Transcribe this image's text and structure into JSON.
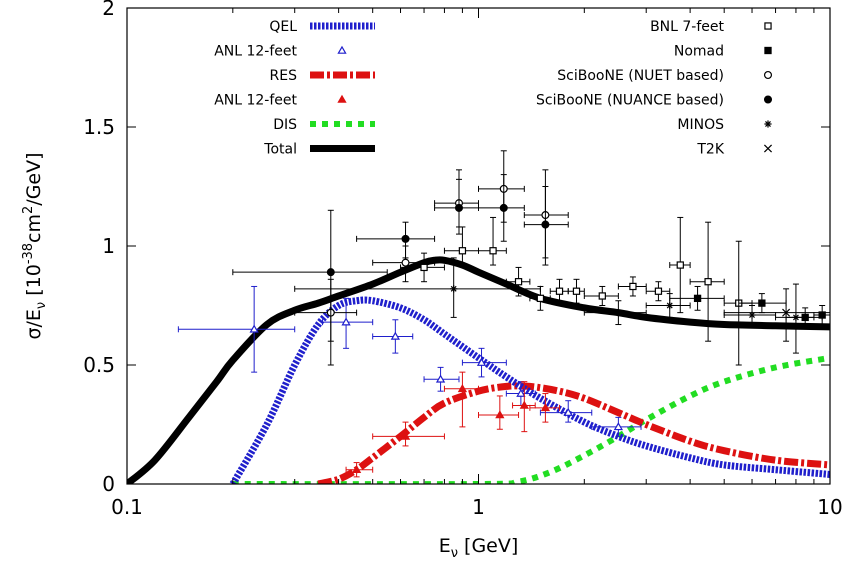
{
  "chart_data": {
    "type": "scatter",
    "title": "",
    "xlabel": "E",
    "xlabel_sub": "ν",
    "xlabel_unit": " [GeV]",
    "ylabel_pre": "σ/E",
    "ylabel_sub": "ν",
    "ylabel_mid": " [10",
    "ylabel_exp1": "-38",
    "ylabel_mid2": "cm",
    "ylabel_exp2": "2",
    "ylabel_post": "/GeV]",
    "x_scale": "log",
    "xlim": [
      0.1,
      10
    ],
    "ylim": [
      0,
      2
    ],
    "x_ticks": [
      0.1,
      1,
      10
    ],
    "x_tick_labels": [
      "0.1",
      "1",
      "10"
    ],
    "y_ticks": [
      0,
      0.5,
      1,
      1.5,
      2
    ],
    "y_tick_labels": [
      "0",
      "0.5",
      "1",
      "1.5",
      "2"
    ],
    "grid": false,
    "legend_left": [
      "QEL",
      "ANL 12-feet",
      "RES",
      "ANL 12-feet",
      "DIS",
      "Total"
    ],
    "legend_right": [
      "BNL 7-feet",
      "Nomad",
      "SciBooNE (NUET based)",
      "SciBooNE (NUANCE based)",
      "MINOS",
      "T2K"
    ],
    "curves": [
      {
        "name": "QEL",
        "color": "#1f1fcc",
        "style": "dotted",
        "x": [
          0.2,
          0.25,
          0.3,
          0.35,
          0.4,
          0.45,
          0.5,
          0.6,
          0.7,
          0.8,
          1.0,
          1.2,
          1.5,
          2.0,
          2.5,
          3.0,
          4.0,
          5.0,
          7.0,
          10.0
        ],
        "y": [
          0.0,
          0.25,
          0.5,
          0.67,
          0.75,
          0.77,
          0.77,
          0.74,
          0.69,
          0.63,
          0.53,
          0.45,
          0.36,
          0.26,
          0.2,
          0.16,
          0.11,
          0.08,
          0.06,
          0.04
        ]
      },
      {
        "name": "RES",
        "color": "#dd1111",
        "style": "dashdot",
        "x": [
          0.35,
          0.4,
          0.45,
          0.5,
          0.6,
          0.7,
          0.8,
          1.0,
          1.2,
          1.4,
          1.7,
          2.0,
          2.5,
          3.0,
          4.0,
          5.0,
          7.0,
          10.0
        ],
        "y": [
          0.0,
          0.02,
          0.06,
          0.11,
          0.2,
          0.28,
          0.34,
          0.39,
          0.41,
          0.41,
          0.39,
          0.36,
          0.3,
          0.25,
          0.18,
          0.14,
          0.1,
          0.08
        ]
      },
      {
        "name": "DIS",
        "color": "#22dd22",
        "style": "dotted",
        "x": [
          0.2,
          1.0,
          1.3,
          1.6,
          2.0,
          2.5,
          3.0,
          4.0,
          5.0,
          7.0,
          10.0
        ],
        "y": [
          0.0,
          0.0,
          0.01,
          0.05,
          0.12,
          0.2,
          0.27,
          0.37,
          0.43,
          0.49,
          0.53
        ]
      },
      {
        "name": "Total",
        "color": "#000000",
        "style": "solid",
        "x": [
          0.1,
          0.12,
          0.15,
          0.18,
          0.2,
          0.25,
          0.3,
          0.35,
          0.4,
          0.5,
          0.6,
          0.7,
          0.75,
          0.8,
          0.9,
          1.0,
          1.2,
          1.5,
          2.0,
          2.5,
          3.0,
          4.0,
          5.0,
          7.0,
          10.0
        ],
        "y": [
          0.0,
          0.1,
          0.28,
          0.43,
          0.52,
          0.67,
          0.73,
          0.76,
          0.79,
          0.84,
          0.89,
          0.93,
          0.94,
          0.94,
          0.92,
          0.89,
          0.84,
          0.78,
          0.74,
          0.72,
          0.7,
          0.68,
          0.67,
          0.665,
          0.66
        ]
      }
    ],
    "points": [
      {
        "name": "ANL 12-feet (QEL)",
        "marker": "triangle-open",
        "color": "#1f1fcc",
        "data": [
          {
            "x": 0.23,
            "y": 0.65,
            "xl": 0.14,
            "xh": 0.3,
            "yl": 0.47,
            "yh": 0.83
          },
          {
            "x": 0.42,
            "y": 0.68,
            "xl": 0.36,
            "xh": 0.5,
            "yl": 0.57,
            "yh": 0.78
          },
          {
            "x": 0.58,
            "y": 0.62,
            "xl": 0.5,
            "xh": 0.65,
            "yl": 0.55,
            "yh": 0.69
          },
          {
            "x": 0.78,
            "y": 0.44,
            "xl": 0.7,
            "xh": 0.88,
            "yl": 0.39,
            "yh": 0.49
          },
          {
            "x": 1.02,
            "y": 0.51,
            "xl": 0.9,
            "xh": 1.2,
            "yl": 0.45,
            "yh": 0.57
          },
          {
            "x": 1.32,
            "y": 0.38,
            "xl": 1.2,
            "xh": 1.45,
            "yl": 0.33,
            "yh": 0.43
          },
          {
            "x": 1.8,
            "y": 0.3,
            "xl": 1.5,
            "xh": 2.1,
            "yl": 0.26,
            "yh": 0.35
          },
          {
            "x": 2.5,
            "y": 0.24,
            "xl": 2.1,
            "xh": 2.9,
            "yl": 0.2,
            "yh": 0.28
          }
        ]
      },
      {
        "name": "ANL 12-feet (RES)",
        "marker": "triangle-filled",
        "color": "#dd1111",
        "data": [
          {
            "x": 0.45,
            "y": 0.06,
            "xl": 0.42,
            "xh": 0.5,
            "yl": 0.03,
            "yh": 0.09
          },
          {
            "x": 0.62,
            "y": 0.2,
            "xl": 0.5,
            "xh": 0.8,
            "yl": 0.16,
            "yh": 0.26
          },
          {
            "x": 0.9,
            "y": 0.4,
            "xl": 0.8,
            "xh": 1.0,
            "yl": 0.24,
            "yh": 0.47
          },
          {
            "x": 1.15,
            "y": 0.29,
            "xl": 1.0,
            "xh": 1.3,
            "yl": 0.23,
            "yh": 0.37
          },
          {
            "x": 1.35,
            "y": 0.33,
            "xl": 1.25,
            "xh": 1.45,
            "yl": 0.22,
            "yh": 0.43
          },
          {
            "x": 1.55,
            "y": 0.32,
            "xl": 1.4,
            "xh": 1.7,
            "yl": 0.26,
            "yh": 0.38
          }
        ]
      },
      {
        "name": "BNL 7-feet",
        "marker": "square-open",
        "color": "#000000",
        "data": [
          {
            "x": 0.7,
            "y": 0.91,
            "xl": 0.6,
            "xh": 0.8,
            "yl": 0.85,
            "yh": 0.97
          },
          {
            "x": 0.9,
            "y": 0.98,
            "xl": 0.8,
            "xh": 1.0,
            "yl": 0.92,
            "yh": 1.08
          },
          {
            "x": 1.1,
            "y": 0.98,
            "xl": 1.0,
            "xh": 1.2,
            "yl": 0.92,
            "yh": 1.12
          },
          {
            "x": 1.3,
            "y": 0.85,
            "xl": 1.2,
            "xh": 1.4,
            "yl": 0.79,
            "yh": 0.91
          },
          {
            "x": 1.5,
            "y": 0.78,
            "xl": 1.4,
            "xh": 1.6,
            "yl": 0.73,
            "yh": 0.83
          },
          {
            "x": 1.7,
            "y": 0.81,
            "xl": 1.6,
            "xh": 1.8,
            "yl": 0.76,
            "yh": 0.86
          },
          {
            "x": 1.9,
            "y": 0.81,
            "xl": 1.8,
            "xh": 2.0,
            "yl": 0.76,
            "yh": 0.86
          },
          {
            "x": 2.25,
            "y": 0.79,
            "xl": 2.0,
            "xh": 2.5,
            "yl": 0.75,
            "yh": 0.83
          },
          {
            "x": 2.75,
            "y": 0.83,
            "xl": 2.5,
            "xh": 3.0,
            "yl": 0.79,
            "yh": 0.87
          },
          {
            "x": 3.25,
            "y": 0.81,
            "xl": 3.0,
            "xh": 3.5,
            "yl": 0.77,
            "yh": 0.85
          },
          {
            "x": 3.75,
            "y": 0.92,
            "xl": 3.5,
            "xh": 4.0,
            "yl": 0.72,
            "yh": 1.12
          },
          {
            "x": 4.5,
            "y": 0.85,
            "xl": 4.0,
            "xh": 5.0,
            "yl": 0.6,
            "yh": 1.1
          },
          {
            "x": 5.5,
            "y": 0.76,
            "xl": 5.0,
            "xh": 6.0,
            "yl": 0.5,
            "yh": 1.02
          }
        ]
      },
      {
        "name": "Nomad",
        "marker": "square-filled",
        "color": "#000000",
        "data": [
          {
            "x": 4.2,
            "y": 0.78,
            "xl": 3.5,
            "xh": 5.0,
            "yl": 0.73,
            "yh": 0.83
          },
          {
            "x": 6.4,
            "y": 0.76,
            "xl": 5.5,
            "xh": 7.5,
            "yl": 0.72,
            "yh": 0.8
          },
          {
            "x": 8.5,
            "y": 0.7,
            "xl": 7.5,
            "xh": 9.5,
            "yl": 0.66,
            "yh": 0.74
          },
          {
            "x": 9.5,
            "y": 0.71,
            "xl": 9.0,
            "xh": 10.0,
            "yl": 0.67,
            "yh": 0.75
          }
        ]
      },
      {
        "name": "SciBooNE (NUET based)",
        "marker": "circle-open",
        "color": "#000000",
        "data": [
          {
            "x": 0.38,
            "y": 0.72,
            "xl": 0.3,
            "xh": 0.45,
            "yl": 0.6,
            "yh": 0.86
          },
          {
            "x": 0.62,
            "y": 0.93,
            "xl": 0.5,
            "xh": 0.75,
            "yl": 0.85,
            "yh": 1.0
          },
          {
            "x": 0.88,
            "y": 1.18,
            "xl": 0.75,
            "xh": 1.0,
            "yl": 1.08,
            "yh": 1.32
          },
          {
            "x": 1.18,
            "y": 1.24,
            "xl": 1.0,
            "xh": 1.35,
            "yl": 1.1,
            "yh": 1.4
          },
          {
            "x": 1.55,
            "y": 1.13,
            "xl": 1.35,
            "xh": 1.8,
            "yl": 0.95,
            "yh": 1.32
          }
        ]
      },
      {
        "name": "SciBooNE (NUANCE based)",
        "marker": "circle-filled",
        "color": "#000000",
        "data": [
          {
            "x": 0.38,
            "y": 0.89,
            "xl": 0.2,
            "xh": 0.55,
            "yl": 0.5,
            "yh": 1.15
          },
          {
            "x": 0.62,
            "y": 1.03,
            "xl": 0.45,
            "xh": 0.75,
            "yl": 0.95,
            "yh": 1.1
          },
          {
            "x": 0.88,
            "y": 1.16,
            "xl": 0.75,
            "xh": 1.0,
            "yl": 1.05,
            "yh": 1.28
          },
          {
            "x": 1.18,
            "y": 1.16,
            "xl": 1.0,
            "xh": 1.35,
            "yl": 1.02,
            "yh": 1.3
          },
          {
            "x": 1.55,
            "y": 1.09,
            "xl": 1.35,
            "xh": 1.8,
            "yl": 0.92,
            "yh": 1.25
          }
        ]
      },
      {
        "name": "MINOS",
        "marker": "asterisk",
        "color": "#000000",
        "data": [
          {
            "x": 0.85,
            "y": 0.82,
            "xl": 0.3,
            "xh": 1.5,
            "yl": 0.7,
            "yh": 0.95
          },
          {
            "x": 2.5,
            "y": 0.72,
            "xl": 2.0,
            "xh": 3.0,
            "yl": 0.67,
            "yh": 0.77
          },
          {
            "x": 3.5,
            "y": 0.75,
            "xl": 3.0,
            "xh": 4.0,
            "yl": 0.7,
            "yh": 0.8
          },
          {
            "x": 6.0,
            "y": 0.71,
            "xl": 5.0,
            "xh": 7.0,
            "yl": 0.67,
            "yh": 0.75
          },
          {
            "x": 8.0,
            "y": 0.7,
            "xl": 7.0,
            "xh": 9.0,
            "yl": 0.55,
            "yh": 0.84
          }
        ]
      },
      {
        "name": "T2K",
        "marker": "cross",
        "color": "#000000",
        "data": [
          {
            "x": 7.5,
            "y": 0.72,
            "xl": 5.0,
            "xh": 10.0,
            "yl": 0.6,
            "yh": 0.82
          }
        ]
      }
    ]
  }
}
